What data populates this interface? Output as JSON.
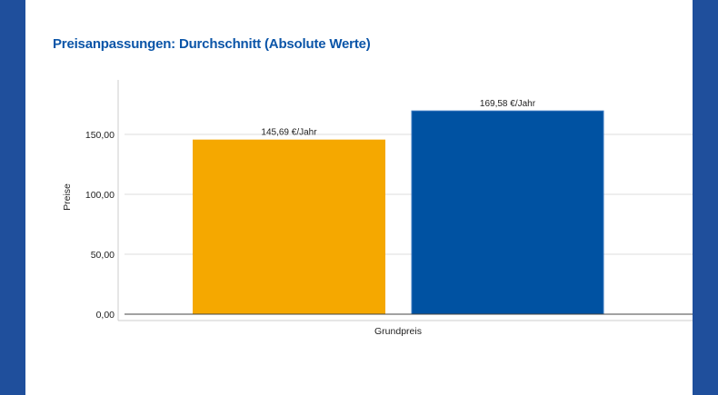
{
  "title": "Preisanpassungen: Durchschnitt (Absolute Werte)",
  "chart_data": {
    "type": "bar",
    "title": "Preisanpassungen: Durchschnitt (Absolute Werte)",
    "xlabel": "",
    "ylabel": "Preise",
    "categories": [
      "Grundpreis"
    ],
    "series": [
      {
        "values": [
          145.69
        ],
        "color": "#F5A800",
        "data_label": "145,69 €/Jahr"
      },
      {
        "values": [
          169.58
        ],
        "color": "#0052A2",
        "data_label": "169,58 €/Jahr"
      }
    ],
    "ylim": [
      0,
      195
    ],
    "yticks": [
      0,
      50,
      100,
      150
    ],
    "ytick_labels": [
      "0,00",
      "50,00",
      "100,00",
      "150,00"
    ],
    "grid": true,
    "legend": "none"
  }
}
